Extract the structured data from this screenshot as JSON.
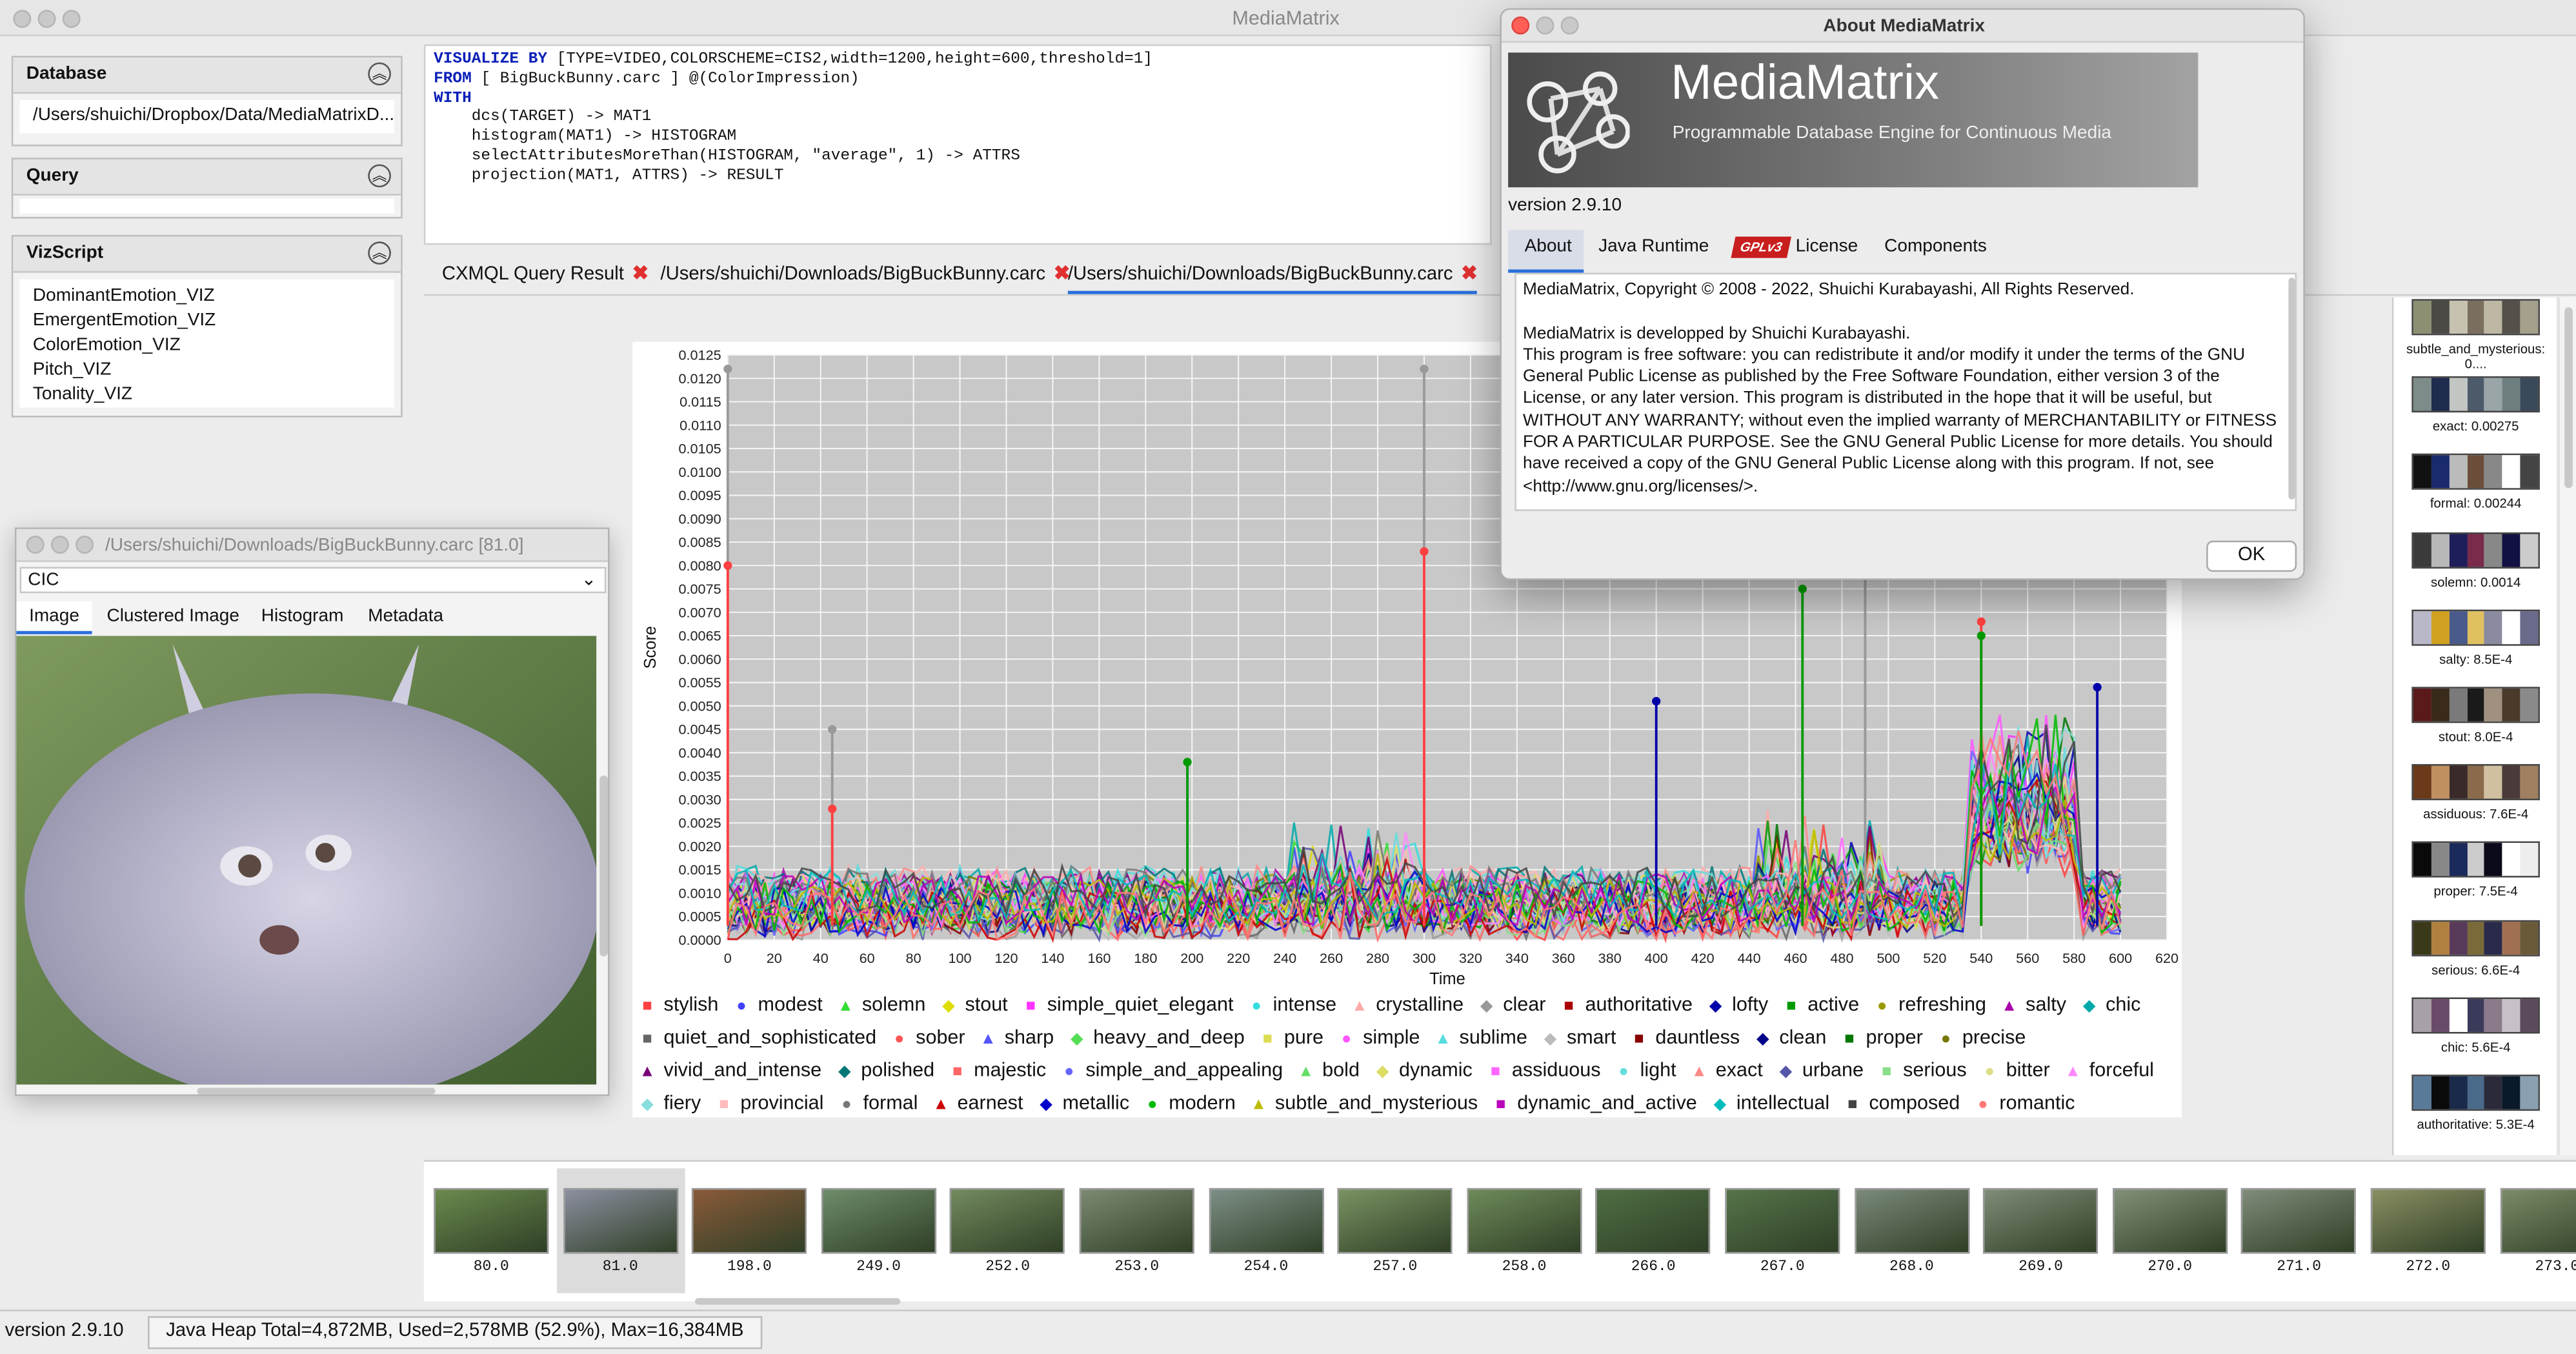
{
  "window": {
    "title": "MediaMatrix"
  },
  "panels": {
    "database": {
      "title": "Database",
      "value": "/Users/shuichi/Dropbox/Data/MediaMatrixD..."
    },
    "query": {
      "title": "Query",
      "value": ""
    },
    "vizscript": {
      "title": "VizScript",
      "items": [
        "DominantEmotion_VIZ",
        "EmergentEmotion_VIZ",
        "ColorEmotion_VIZ",
        "Pitch_VIZ",
        "Tonality_VIZ"
      ]
    }
  },
  "editor": {
    "lines": [
      [
        "VISUALIZE BY",
        " [TYPE=VIDEO,COLORSCHEME=CIS2,width=1200,height=600,threshold=1]"
      ],
      [
        "FROM",
        " [ BigBuckBunny.carc ] @(ColorImpression)"
      ],
      [
        "WITH",
        ""
      ],
      [
        "",
        "    dcs(TARGET) -> MAT1"
      ],
      [
        "",
        "    histogram(MAT1) -> HISTOGRAM"
      ],
      [
        "",
        "    selectAttributesMoreThan(HISTOGRAM, \"average\", 1) -> ATTRS"
      ],
      [
        "",
        "    projection(MAT1, ATTRS) -> RESULT"
      ]
    ]
  },
  "tabs": [
    "CXMQL Query Result",
    "/Users/shuichi/Downloads/BigBuckBunny.carc",
    "/Users/shuichi/Downloads/BigBuckBunny.carc"
  ],
  "chart_data": {
    "type": "line",
    "xlabel": "Time",
    "ylabel": "Score",
    "xlim": [
      0,
      620
    ],
    "ylim": [
      0,
      0.0125
    ],
    "x_ticks": [
      0,
      20,
      40,
      60,
      80,
      100,
      120,
      140,
      160,
      180,
      200,
      220,
      240,
      260,
      280,
      300,
      320,
      340,
      360,
      380,
      400,
      420,
      440,
      460,
      480,
      500,
      520,
      540,
      560,
      580,
      600,
      620
    ],
    "y_ticks": [
      "0.0000",
      "0.0005",
      "0.0010",
      "0.0015",
      "0.0020",
      "0.0025",
      "0.0030",
      "0.0035",
      "0.0040",
      "0.0045",
      "0.0050",
      "0.0055",
      "0.0060",
      "0.0065",
      "0.0070",
      "0.0075",
      "0.0080",
      "0.0085",
      "0.0090",
      "0.0095",
      "0.0100",
      "0.0105",
      "0.0110",
      "0.0115",
      "0.0120",
      "0.0125"
    ],
    "grid": true,
    "legend_position": "bottom",
    "series": [
      {
        "name": "stylish",
        "color": "#ff4040",
        "marker": "■"
      },
      {
        "name": "modest",
        "color": "#4040ff",
        "marker": "●"
      },
      {
        "name": "solemn",
        "color": "#33dd33",
        "marker": "▲"
      },
      {
        "name": "stout",
        "color": "#dddd00",
        "marker": "◆"
      },
      {
        "name": "simple_quiet_elegant",
        "color": "#ff33ff",
        "marker": "■"
      },
      {
        "name": "intense",
        "color": "#33dddd",
        "marker": "●"
      },
      {
        "name": "crystalline",
        "color": "#ffaaaa",
        "marker": "▲"
      },
      {
        "name": "clear",
        "color": "#999999",
        "marker": "◆"
      },
      {
        "name": "authoritative",
        "color": "#aa0000",
        "marker": "■"
      },
      {
        "name": "lofty",
        "color": "#0000aa",
        "marker": "◆"
      },
      {
        "name": "active",
        "color": "#009900",
        "marker": "■"
      },
      {
        "name": "refreshing",
        "color": "#999900",
        "marker": "●"
      },
      {
        "name": "salty",
        "color": "#aa00aa",
        "marker": "▲"
      },
      {
        "name": "chic",
        "color": "#00aaaa",
        "marker": "◆"
      },
      {
        "name": "quiet_and_sophisticated",
        "color": "#666666",
        "marker": "■"
      },
      {
        "name": "sober",
        "color": "#ff5555",
        "marker": "●"
      },
      {
        "name": "sharp",
        "color": "#5555ff",
        "marker": "▲"
      },
      {
        "name": "heavy_and_deep",
        "color": "#55dd55",
        "marker": "◆"
      },
      {
        "name": "pure",
        "color": "#dddd55",
        "marker": "■"
      },
      {
        "name": "simple",
        "color": "#ff55ff",
        "marker": "●"
      },
      {
        "name": "sublime",
        "color": "#55dddd",
        "marker": "▲"
      },
      {
        "name": "smart",
        "color": "#bbbbbb",
        "marker": "◆"
      },
      {
        "name": "dauntless",
        "color": "#880000",
        "marker": "■"
      },
      {
        "name": "clean",
        "color": "#000088",
        "marker": "◆"
      },
      {
        "name": "proper",
        "color": "#007700",
        "marker": "■"
      },
      {
        "name": "precise",
        "color": "#777700",
        "marker": "●"
      },
      {
        "name": "vivid_and_intense",
        "color": "#770077",
        "marker": "▲"
      },
      {
        "name": "polished",
        "color": "#007777",
        "marker": "◆"
      },
      {
        "name": "majestic",
        "color": "#ff6666",
        "marker": "■"
      },
      {
        "name": "simple_and_appealing",
        "color": "#6666ff",
        "marker": "●"
      },
      {
        "name": "bold",
        "color": "#66dd66",
        "marker": "▲"
      },
      {
        "name": "dynamic",
        "color": "#dddd66",
        "marker": "◆"
      },
      {
        "name": "assiduous",
        "color": "#ff66ff",
        "marker": "■"
      },
      {
        "name": "light",
        "color": "#66dddd",
        "marker": "●"
      },
      {
        "name": "exact",
        "color": "#ff8888",
        "marker": "▲"
      },
      {
        "name": "urbane",
        "color": "#5555aa",
        "marker": "◆"
      },
      {
        "name": "serious",
        "color": "#88dd88",
        "marker": "■"
      },
      {
        "name": "bitter",
        "color": "#dddd88",
        "marker": "●"
      },
      {
        "name": "forceful",
        "color": "#ff88ff",
        "marker": "▲"
      },
      {
        "name": "fiery",
        "color": "#88dddd",
        "marker": "◆"
      },
      {
        "name": "provincial",
        "color": "#ffbbbb",
        "marker": "■"
      },
      {
        "name": "formal",
        "color": "#777777",
        "marker": "●"
      },
      {
        "name": "earnest",
        "color": "#cc0000",
        "marker": "▲"
      },
      {
        "name": "metallic",
        "color": "#0000cc",
        "marker": "◆"
      },
      {
        "name": "modern",
        "color": "#00bb00",
        "marker": "●"
      },
      {
        "name": "subtle_and_mysterious",
        "color": "#bbbb00",
        "marker": "▲"
      },
      {
        "name": "dynamic_and_active",
        "color": "#bb00bb",
        "marker": "■"
      },
      {
        "name": "intellectual",
        "color": "#00bbbb",
        "marker": "◆"
      },
      {
        "name": "composed",
        "color": "#444444",
        "marker": "■"
      },
      {
        "name": "romantic",
        "color": "#ff7777",
        "marker": "●"
      }
    ],
    "highlights": [
      {
        "series": "clear",
        "x": 0,
        "y": 0.0122
      },
      {
        "series": "stylish",
        "x": 0,
        "y": 0.008
      },
      {
        "series": "clear",
        "x": 45,
        "y": 0.0045
      },
      {
        "series": "stylish",
        "x": 45,
        "y": 0.0028
      },
      {
        "series": "active",
        "x": 198,
        "y": 0.0038
      },
      {
        "series": "clear",
        "x": 300,
        "y": 0.0122
      },
      {
        "series": "stylish",
        "x": 300,
        "y": 0.0083
      },
      {
        "series": "lofty",
        "x": 400,
        "y": 0.0051
      },
      {
        "series": "active",
        "x": 463,
        "y": 0.0075
      },
      {
        "series": "clear",
        "x": 490,
        "y": 0.0078
      },
      {
        "series": "stylish",
        "x": 540,
        "y": 0.0068
      },
      {
        "series": "active",
        "x": 540,
        "y": 0.0065
      },
      {
        "series": "lofty",
        "x": 590,
        "y": 0.0054
      }
    ]
  },
  "thumbnails": [
    {
      "label": "80.0",
      "color": "#6b8a4e"
    },
    {
      "label": "81.0",
      "color": "#8c8fa0"
    },
    {
      "label": "198.0",
      "color": "#8a5a3a"
    },
    {
      "label": "249.0",
      "color": "#6e8c6a"
    },
    {
      "label": "252.0",
      "color": "#738a5e"
    },
    {
      "label": "253.0",
      "color": "#7c8a74"
    },
    {
      "label": "254.0",
      "color": "#7d8f86"
    },
    {
      "label": "257.0",
      "color": "#7a9262"
    },
    {
      "label": "258.0",
      "color": "#6f8a5a"
    },
    {
      "label": "266.0",
      "color": "#4f6e44"
    },
    {
      "label": "267.0",
      "color": "#56744a"
    },
    {
      "label": "268.0",
      "color": "#7b8a7a"
    },
    {
      "label": "269.0",
      "color": "#7f8d78"
    },
    {
      "label": "270.0",
      "color": "#839079"
    },
    {
      "label": "271.0",
      "color": "#7f8c7a"
    },
    {
      "label": "272.0",
      "color": "#8a8f63"
    },
    {
      "label": "273.0",
      "color": "#7a8c68"
    }
  ],
  "swatches": [
    {
      "label": "subtle_and_mysterious: 0....",
      "colors": [
        "#8d8f73",
        "#4c4a45",
        "#c7c2b0",
        "#7a6f5e",
        "#bdb7a3",
        "#55514a",
        "#a5a08c"
      ]
    },
    {
      "label": "exact: 0.00275",
      "colors": [
        "#7e8c89",
        "#1e2c4e",
        "#c2c6c2",
        "#4c5a6a",
        "#9aa5a8",
        "#6f7f7f",
        "#3a4a5a"
      ]
    },
    {
      "label": "formal: 0.00244",
      "colors": [
        "#111111",
        "#1a2a6c",
        "#bbbbbb",
        "#6a4e3a",
        "#888888",
        "#ffffff",
        "#444444"
      ]
    },
    {
      "label": "solemn: 0.0014",
      "colors": [
        "#3a3a3a",
        "#b8b8b8",
        "#1e1e5a",
        "#7a2a4a",
        "#888888",
        "#111144",
        "#cccccc"
      ]
    },
    {
      "label": "salty: 8.5E-4",
      "colors": [
        "#b8b8c8",
        "#d0a020",
        "#4a5a8a",
        "#e0c060",
        "#8a8aa0",
        "#ffffff",
        "#6a6a8a"
      ]
    },
    {
      "label": "stout: 8.0E-4",
      "colors": [
        "#5a1a1a",
        "#3a2a1a",
        "#7a7a7a",
        "#1a1a1a",
        "#a09080",
        "#4a3a2a",
        "#8a8a8a"
      ]
    },
    {
      "label": "assiduous: 7.6E-4",
      "colors": [
        "#6a3a1a",
        "#c09060",
        "#3a2a2a",
        "#8a6a4a",
        "#d0c0a0",
        "#4a3a3a",
        "#a08060"
      ]
    },
    {
      "label": "proper: 7.5E-4",
      "colors": [
        "#0a0a0a",
        "#888888",
        "#1a2a5a",
        "#cccccc",
        "#0a0a1a",
        "#ffffff",
        "#eeeeee"
      ]
    },
    {
      "label": "serious: 6.6E-4",
      "colors": [
        "#3a3a1a",
        "#b08040",
        "#5a3a5a",
        "#7a6a3a",
        "#2a2a4a",
        "#a07050",
        "#6a5a3a"
      ]
    },
    {
      "label": "chic: 5.6E-4",
      "colors": [
        "#a8a0a8",
        "#6a4a6a",
        "#ffffff",
        "#3a3a5a",
        "#8a7a8a",
        "#c8c0c8",
        "#5a4a5a"
      ]
    },
    {
      "label": "authoritative: 5.3E-4",
      "colors": [
        "#5a7a9a",
        "#0a0a0a",
        "#1a2a4a",
        "#4a6a8a",
        "#2a2a3a",
        "#0a1a2a",
        "#8aa0b0"
      ]
    }
  ],
  "viewer": {
    "title": "/Users/shuichi/Downloads/BigBuckBunny.carc  [81.0]",
    "dropdown": "CIC",
    "tabs": [
      "Image",
      "Clustered Image",
      "Histogram",
      "Metadata"
    ]
  },
  "about": {
    "title": "About MediaMatrix",
    "app_name": "MediaMatrix",
    "tagline": "Programmable Database Engine for Continuous Media",
    "version": "version 2.9.10",
    "tabs": [
      "About",
      "Java Runtime",
      "License",
      "Components"
    ],
    "gpl_badge": "GPLv3",
    "lines": [
      "MediaMatrix, Copyright © 2008 - 2022, Shuichi Kurabayashi,  All Rights Reserved.",
      "",
      "MediaMatrix is developped by Shuichi Kurabayashi.",
      "This program is free software: you can redistribute it and/or modify it under the terms of the GNU",
      "General Public License as published by the Free Software Foundation, either version 3 of the",
      "License, or any later version.  This program is distributed in the hope that it will be useful, but",
      "WITHOUT ANY WARRANTY; without even the implied warranty of MERCHANTABILITY or FITNESS",
      "FOR A PARTICULAR PURPOSE.  See the GNU General Public License for more details.  You should",
      "have received a copy of the GNU General Public License along with this program.  If not, see",
      "<http://www.gnu.org/licenses/>."
    ],
    "ok_label": "OK"
  },
  "status": {
    "version": "version 2.9.10",
    "heap": "Java Heap Total=4,872MB, Used=2,578MB (52.9%), Max=16,384MB"
  }
}
